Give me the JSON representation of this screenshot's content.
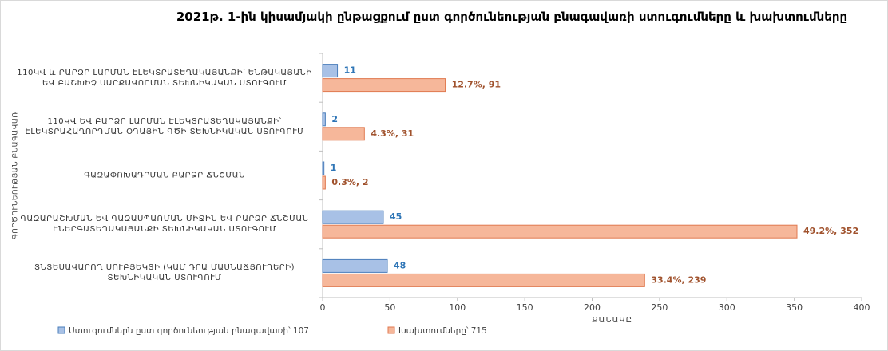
{
  "chart_data": {
    "type": "barh",
    "title": "2021թ. 1-ին կիսամյակի ընթացքում ըստ գործունեության բնագավառի ստուգումները և խախտումները",
    "categories": [
      "110ԿՎ և ԲԱՐՁՐ ԼԱՐՄԱՆ ԷԼԵԿՏՐԱՏԵՂԱԿԱՅԱՆՔԻ՝ ԵՆԹԱԿԱՅԱՆԻ ԵՎ ԲԱՇԽԻՉ ՍԱՐՔԱՎՈՐՄԱՆ ՏԵԽՆԻԿԱԿԱՆ ՍՏՈՒԳՈՒՄ",
      "110ԿՎ ԵՎ ԲԱՐՁՐ ԼԱՐՄԱՆ ԷԼԵԿՏՐԱՏԵՂԱԿԱՅԱՆՔԻ՝ ԷԼԵԿՏՐԱՀԱՂՈՐԴՄԱՆ ՕԴԱՅԻՆ ԳԾԻ ՏԵԽՆԻԿԱԿԱՆ ՍՏՈՒԳՈՒՄ",
      "ԳԱԶԱՓՈԽԱԴՐՄԱՆ ԲԱՐՁՐ ՃՆՇՄԱՆ",
      "ԳԱԶԱԲԱՇԽՄԱՆ ԵՎ ԳԱԶԱՍՊԱՌՄԱՆ ՄԻՋԻՆ ԵՎ ԲԱՐՁՐ ՃՆՇՄԱՆ ԷՆԵՐԳԱՏԵՂԱԿԱՅԱՆՔԻ ՏԵԽՆԻԿԱԿԱՆ ՍՏՈՒԳՈՒՄ",
      "ՏՆՏԵՍԱՎԱՐՈՂ ՍՈՒԲՅԵԿՏԻ (ԿԱՄ ԴՐԱ ՄԱՍՆԱՃՅՈՒՂԵՐԻ) ՏԵԽՆԻԿԱԿԱՆ ՍՏՈՒԳՈՒՄ"
    ],
    "series": [
      {
        "name": "Ստուգումներն ըստ գործունեության բնագավառի՝ 107",
        "color": "#a8c1e6",
        "values": [
          11,
          2,
          1,
          45,
          48
        ]
      },
      {
        "name": "Խախտումները՝ 715",
        "color": "#f6b79a",
        "values": [
          91,
          31,
          2,
          352,
          239
        ],
        "value_labels": [
          "12.7%, 91",
          "4.3%, 31",
          "0.3%, 2",
          "49.2%, 352",
          "33.4%, 239"
        ]
      }
    ],
    "xlabel": "ՔԱՆԱԿԸ",
    "ylabel": "ԳՈՐԾՈՒՆԵՈՒԹՅԱՆ ԲՆԱԳԱՎԱՌ",
    "xlim": [
      0,
      400
    ],
    "xticks": [
      0,
      50,
      100,
      150,
      200,
      250,
      300,
      350,
      400
    ],
    "legend": "bottom"
  }
}
